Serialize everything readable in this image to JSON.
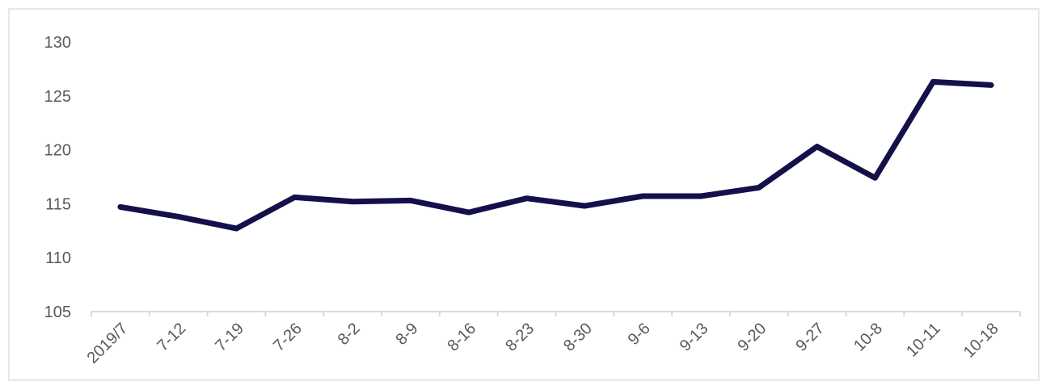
{
  "chart_data": {
    "type": "line",
    "categories": [
      "2019/7",
      "7-12",
      "7-19",
      "7-26",
      "8-2",
      "8-9",
      "8-16",
      "8-23",
      "8-30",
      "9-6",
      "9-13",
      "9-20",
      "9-27",
      "10-8",
      "10-11",
      "10-18"
    ],
    "series": [
      {
        "values": [
          114.7,
          113.8,
          112.7,
          115.6,
          115.2,
          115.3,
          114.2,
          115.5,
          114.8,
          115.7,
          115.7,
          116.5,
          120.3,
          117.4,
          126.3,
          126.0
        ]
      }
    ],
    "y_ticks": [
      "105",
      "110",
      "115",
      "120",
      "125",
      "130"
    ],
    "ylim": [
      105,
      130
    ],
    "grid": false,
    "legend": "none",
    "title": "",
    "xlabel": "",
    "ylabel": "",
    "colors": {
      "line": "#13104a",
      "axis": "#d9d9d9",
      "text": "#595959"
    }
  }
}
